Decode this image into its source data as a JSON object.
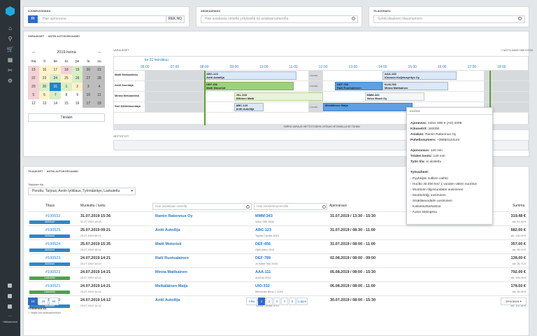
{
  "nav": {
    "help_label": "Hakbaat arkat"
  },
  "search": {
    "vehicle_label": "AJONEUVOHAKU",
    "country": "FI",
    "vehicle_placeholder": "Hae ajoneuvoa",
    "rek_button": "REK.NO",
    "customer_label": "ASIAKASHAKU",
    "customer_placeholder": "Hae asiakasta nimellä yrityksellä tai asiakasnumerolla",
    "order_label": "TILAUSHAKU",
    "order_placeholder": "Syötä tilauksen tilausnumero"
  },
  "booking": {
    "crumb1": "VARAUKSET",
    "crumb2": "ANTIN AUTOKORJAAMO",
    "cal_title": "2019-heinä",
    "prev": "←",
    "next": "→",
    "weekdays": [
      "ma",
      "ti",
      "ke",
      "to",
      "pe",
      "la",
      "su"
    ],
    "days": [
      {
        "d": "15",
        "c": "r"
      },
      {
        "d": "16",
        "c": "y"
      },
      {
        "d": "17",
        "c": "y"
      },
      {
        "d": "18",
        "c": "r"
      },
      {
        "d": "19",
        "c": "g"
      },
      {
        "d": "20",
        "c": "gr"
      },
      {
        "d": "21",
        "c": "gr"
      },
      {
        "d": "22",
        "c": "r"
      },
      {
        "d": "23",
        "c": "y"
      },
      {
        "d": "24",
        "c": "g"
      },
      {
        "d": "25",
        "c": "y"
      },
      {
        "d": "26",
        "c": "g"
      },
      {
        "d": "27",
        "c": "gr"
      },
      {
        "d": "28",
        "c": "gr"
      },
      {
        "d": "29",
        "c": "r"
      },
      {
        "d": "30",
        "c": "g"
      },
      {
        "d": "31",
        "c": "t"
      },
      {
        "d": "1",
        "c": "g"
      },
      {
        "d": "2",
        "c": "y"
      },
      {
        "d": "3",
        "c": "gr"
      },
      {
        "d": "4",
        "c": "gr"
      },
      {
        "d": "5",
        "c": "r"
      },
      {
        "d": "6",
        "c": "y"
      },
      {
        "d": "7",
        "c": "g"
      },
      {
        "d": "8",
        "c": "n"
      },
      {
        "d": "9",
        "c": "n"
      },
      {
        "d": "10",
        "c": "gr"
      },
      {
        "d": "11",
        "c": "gr"
      },
      {
        "d": "12",
        "c": "n"
      },
      {
        "d": "13",
        "c": "n"
      },
      {
        "d": "14",
        "c": "n"
      },
      {
        "d": "15",
        "c": "n"
      },
      {
        "d": "16",
        "c": "n"
      },
      {
        "d": "17",
        "c": "gr"
      },
      {
        "d": "18",
        "c": "gr"
      }
    ],
    "today_button": "Tänään",
    "timeline_label": "VARAUKSET",
    "show_all": "NÄYTÄ KAIKKI NÄKYVISSÄ",
    "date": "ke 31 heinäkuu",
    "hours": [
      "06:00",
      "07:00",
      "08:00",
      "09:00",
      "10:00",
      "11:00",
      "12:00",
      "13:00",
      "14:00",
      "15:00",
      "16:00",
      "17:00",
      "18:00"
    ],
    "lunch": "Lounas",
    "mechanics": [
      {
        "name": "Matti Mekaanikko",
        "bookings": [
          {
            "plate": "ABC-123",
            "name": "Antti Autoilija",
            "s": 8.0,
            "e": 11.1,
            "style": "b-b"
          },
          {
            "plate": "AAA-135",
            "name": "Kimmon Kuljetusyritys Oy",
            "s": 14.0,
            "e": 16.5,
            "style": "b-b"
          }
        ]
      },
      {
        "name": "Antti Asentaja",
        "bookings": [
          {
            "plate": "DEF-456",
            "name": "Matti Motoristi",
            "s": 8.0,
            "e": 11.0,
            "style": "b-g"
          },
          {
            "plate": "DEF-789",
            "name": "Raili Ruotsalainen",
            "s": 12.4,
            "e": 14.0,
            "style": "b-blu"
          },
          {
            "plate": "KLM-789",
            "name": "Minna Matikainen",
            "s": 14.0,
            "e": 16.2,
            "style": "b-b"
          }
        ]
      },
      {
        "name": "Minna Mekaanikko",
        "bookings": [
          {
            "plate": "JKL-343",
            "name": "Mittinen Matti",
            "s": 9.0,
            "e": 12.0,
            "style": "b-lg"
          },
          {
            "plate": "MMM-343",
            "name": "Volvo Muuti Oy",
            "s": 13.4,
            "e": 15.4,
            "style": "b-w"
          }
        ]
      },
      {
        "name": "Sari Sähköasentaja",
        "bookings": [
          {
            "plate": "ABC-123",
            "name": "Antti Autoilija",
            "s": 9.0,
            "e": 10.0,
            "style": "b-b"
          },
          {
            "plate": "",
            "name": "Mekäläinen Maija",
            "s": 12.0,
            "e": 15.0,
            "style": "b-blu"
          }
        ]
      }
    ],
    "drop_hint": "SIIRRÄ VARAUS HEITTOTOIDEN LISTAAN VETÄMÄLLÄ SE TÄHÄN",
    "section2": "HEITTOTYÖT"
  },
  "popup": {
    "id": "#100532",
    "vehicle_k": "Ajoneuvo:",
    "vehicle_v": "Volvo S80 II (AS) 2008",
    "km_k": "Kilometrit:",
    "km_v": "340000",
    "cust_k": "Asiakas:",
    "cust_v": "Ramin Rakennus Oy",
    "phone_k": "Puhelinnumero:",
    "phone_v": "+35850123123",
    "res_k": "Ajanvaraus:",
    "res_v": "120 min",
    "dur_k": "Töiden kesto:",
    "dur_v": "120 min",
    "state_k": "Työn tila:",
    "state_v": "ei aloitettu",
    "steps_k": "Työvaiheet:",
    "steps": [
      "- Pyyhkijän sulkien vaihto",
      "- Huolto 30.000 km/ 1 vuoden välein suoritus",
      "- Moottorin öljynsuodatin uusiminen",
      "- Moottoriöljy uusiminen",
      "- Sisätilasuodatin uusiminen",
      "- Katsastustarkastus",
      "- Auton käsinpesu"
    ]
  },
  "orders": {
    "crumb1": "TILAUKSET",
    "crumb2": "ANTIN AUTOKORJAAMO",
    "filter_label": "Tilauksen tila",
    "filter_value": "Peruttu, Tarjous, Avoin työtilaus, Työmääräys, Laskutettu",
    "col_order": "Tilaus",
    "col_mod": "Muokattu / luotu",
    "cust_ph": "Hae asiakkaan nimellä",
    "reg_ph": "Hae rekisterinumerolla",
    "col_appt": "Ajanvaraus",
    "col_sum": "Summa",
    "rows": [
      {
        "id": "#100532",
        "status": "Aktiiviset",
        "st": "a",
        "mod": "31.07.2019 15:36",
        "cr": "31.07.2019 15:36",
        "cust": "Ramin Rakennus Oy",
        "plate": "MMM-343",
        "car": "Volvo S80 2008",
        "appt": "31.07.2019 / 13:30 - 15:30",
        "sum": "319.48 €",
        "vat": "alv. 61.84 €"
      },
      {
        "id": "#100525",
        "status": "Aktiiviset",
        "st": "a",
        "mod": "25.07.2019 09:21",
        "cr": "25.07.2019 09:21",
        "cust": "Antti Autoilija",
        "plate": "ABC-123",
        "car": "Toyota Corolla 2010",
        "appt": "31.07.2019 / 08:30 - 11:00",
        "sum": "682.00 €",
        "vat": "alv. 132.00 €"
      },
      {
        "id": "#100524",
        "status": "Aktiiviset",
        "st": "a",
        "mod": "25.07.2019 15:35",
        "cr": "24.07.2019 16:02",
        "cust": "Matti Motoristi",
        "plate": "DEF-456",
        "car": "Opel Astra 2010",
        "appt": "31.07.2019 / 08:00 - 11:00",
        "sum": "357.00 €",
        "vat": "alv. 69.10 €"
      },
      {
        "id": "#100523",
        "status": "Aktiiviset",
        "st": "a",
        "mod": "24.07.2019 14:21",
        "cr": "24.07.2019 14:14",
        "cust": "Raili Ruotsalainen",
        "plate": "DEF-789",
        "car": "Jo traker S6c 2015",
        "appt": "02.08.2019 / 08:00 - 09:00",
        "sum": "138.00 €",
        "vat": "alv. 26.71 €"
      },
      {
        "id": "#100522",
        "status": "Laskutettu",
        "st": "l",
        "mod": "24.07.2019 14:21",
        "cr": "24.07.2019 14:14",
        "cust": "Minna Matikainen",
        "plate": "AAA-111",
        "car": "Audi A4 2012",
        "appt": "05.08.2019 / 08:00 - 15:30",
        "sum": "792.00 €",
        "vat": "alv. 153.29 €"
      },
      {
        "id": "#100521",
        "status": "Laskutettu",
        "st": "l",
        "mod": "24.07.2019 14:21",
        "cr": "24.07.2019 14:14",
        "cust": "Meikäläinen Maija",
        "plate": "UIO-332",
        "car": "Mercedes Benz C 2010",
        "appt": "06.08.2019 / 08:00 - 11:00",
        "sum": "178.50 €",
        "vat": "alv. 34.55 €"
      },
      {
        "id": "#100509",
        "status": "Aktiiviset",
        "st": "a",
        "mod": "24.07.2019 14:12",
        "cr": "24.07.2019 14:12",
        "cust": "Antti Autoilija",
        "plate": "ABC-123",
        "car": "Toyota Corolla 2010",
        "appt": "30.07.2019 / 08:00 - 15:30",
        "sum": "530.00 €",
        "vat": "alv. 102.58 €"
      }
    ],
    "per_page": [
      "10",
      "25",
      "50"
    ],
    "total": "Yhteensä 41",
    "show_cancelled": "Näytä vain sinikvaihtoehdot",
    "pages": [
      "Alku",
      "1",
      "2",
      "3",
      "4",
      "5",
      "Loppu"
    ],
    "more_button": "Seuraava ▾"
  },
  "colors": {
    "accent": "#1e87c9",
    "active_badge": "#2d87c9",
    "billed_badge": "#4ca34c"
  }
}
